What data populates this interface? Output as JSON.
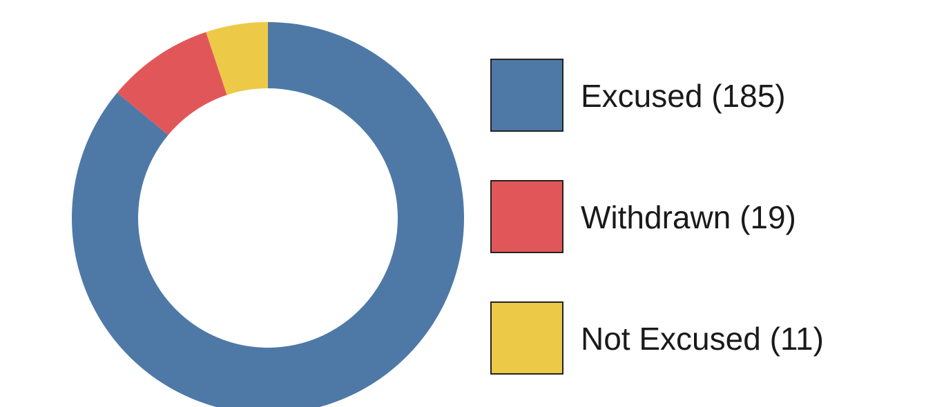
{
  "chart_data": {
    "type": "pie",
    "variant": "donut",
    "title": "",
    "legend_position": "right",
    "series": [
      {
        "name": "Excused (185)",
        "value": 185,
        "color": "#4E79A7"
      },
      {
        "name": "Withdrawn (19)",
        "value": 19,
        "color": "#E15759"
      },
      {
        "name": "Not Excused (11)",
        "value": 11,
        "color": "#EDC948"
      }
    ]
  }
}
